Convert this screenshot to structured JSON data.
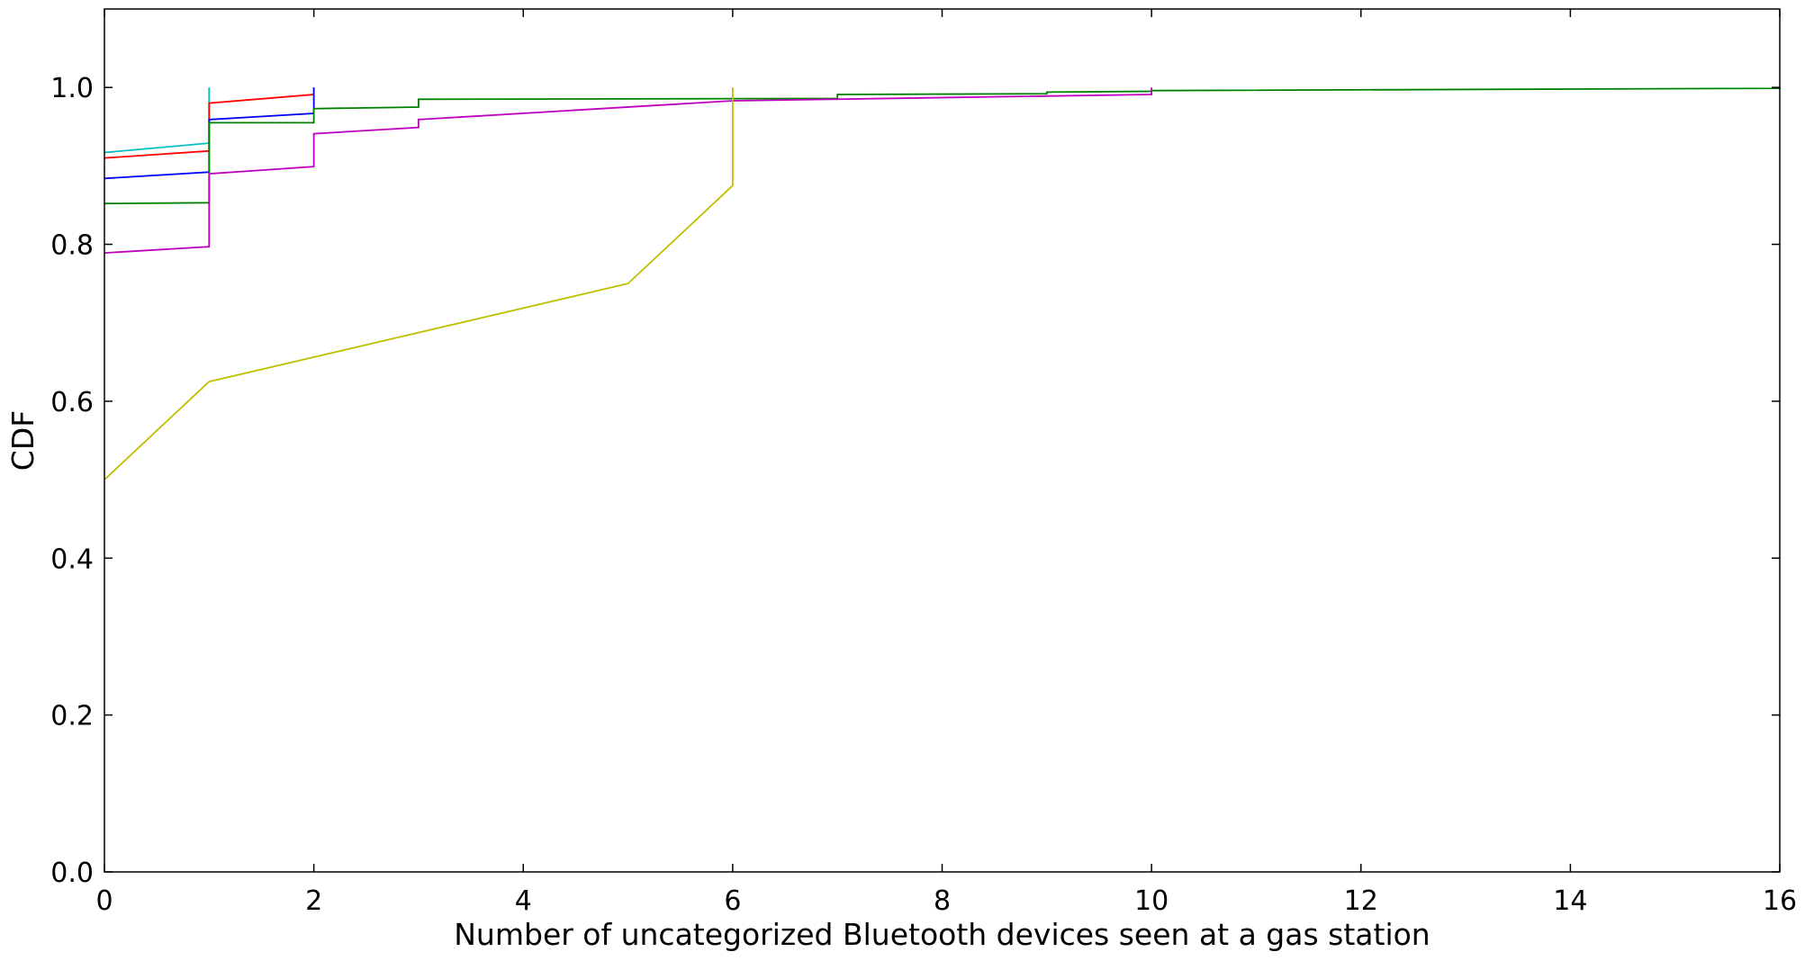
{
  "chart_data": {
    "type": "line",
    "title": "",
    "xlabel": "Number of uncategorized Bluetooth devices seen at a gas station",
    "ylabel": "CDF",
    "xlim": [
      0,
      16
    ],
    "ylim": [
      0,
      1.1
    ],
    "grid": false,
    "legend": "none",
    "x_ticks": [
      0,
      2,
      4,
      6,
      8,
      10,
      12,
      14,
      16
    ],
    "x_tick_labels": [
      "0",
      "2",
      "4",
      "6",
      "8",
      "10",
      "12",
      "14",
      "16"
    ],
    "y_ticks": [
      0.0,
      0.2,
      0.4,
      0.6,
      0.8,
      1.0
    ],
    "y_tick_labels": [
      "0.0",
      "0.2",
      "0.4",
      "0.6",
      "0.8",
      "1.0"
    ],
    "series": [
      {
        "color": "#00bfbf",
        "points": [
          [
            0,
            0.917
          ],
          [
            1,
            0.929
          ],
          [
            1,
            1.0
          ]
        ]
      },
      {
        "color": "#ff0000",
        "points": [
          [
            0,
            0.91
          ],
          [
            1,
            0.919
          ],
          [
            1,
            0.98
          ],
          [
            2,
            0.991
          ],
          [
            2,
            1.0
          ]
        ]
      },
      {
        "color": "#0000ff",
        "points": [
          [
            0,
            0.884
          ],
          [
            1,
            0.892
          ],
          [
            1,
            0.959
          ],
          [
            2,
            0.967
          ],
          [
            2,
            1.0
          ]
        ]
      },
      {
        "color": "#008000",
        "points": [
          [
            0,
            0.852
          ],
          [
            1,
            0.853
          ],
          [
            1,
            0.955
          ],
          [
            2,
            0.955
          ],
          [
            2,
            0.973
          ],
          [
            3,
            0.975
          ],
          [
            3,
            0.985
          ],
          [
            7,
            0.986
          ],
          [
            7,
            0.991
          ],
          [
            9,
            0.992
          ],
          [
            9,
            0.994
          ],
          [
            10,
            0.995
          ],
          [
            10,
            0.996
          ],
          [
            16,
            0.999
          ],
          [
            16,
            1.0
          ]
        ]
      },
      {
        "color": "#bf00bf",
        "points": [
          [
            0,
            0.789
          ],
          [
            1,
            0.797
          ],
          [
            1,
            0.89
          ],
          [
            2,
            0.899
          ],
          [
            2,
            0.941
          ],
          [
            3,
            0.949
          ],
          [
            3,
            0.959
          ],
          [
            6,
            0.983
          ],
          [
            10,
            0.991
          ],
          [
            10,
            1.0
          ]
        ]
      },
      {
        "color": "#bfbf00",
        "points": [
          [
            0,
            0.5
          ],
          [
            1,
            0.625
          ],
          [
            5,
            0.75
          ],
          [
            6,
            0.875
          ],
          [
            6,
            1.0
          ]
        ]
      }
    ]
  }
}
